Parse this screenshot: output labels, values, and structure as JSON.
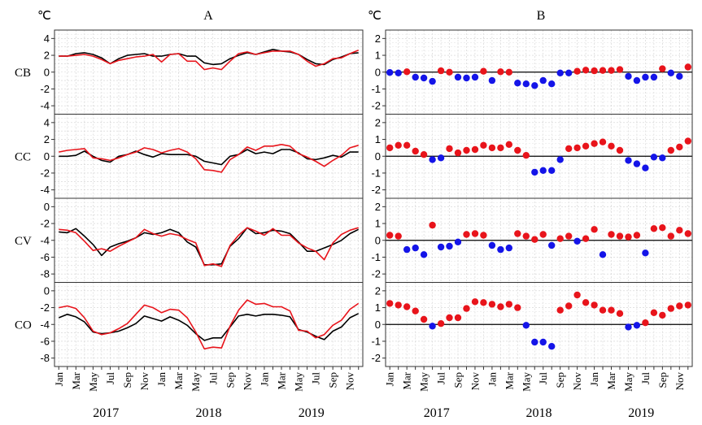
{
  "figure": {
    "panels": [
      {
        "id": "A",
        "title": "A",
        "unit": "℃"
      },
      {
        "id": "B",
        "title": "B",
        "unit": "℃"
      }
    ],
    "years": [
      "2017",
      "2018",
      "2019"
    ]
  },
  "chart_data": [
    {
      "type": "line",
      "panel": "A",
      "title": "A",
      "ylabel": "℃",
      "x": [
        "Jan",
        "Feb",
        "Mar",
        "Apr",
        "May",
        "Jun",
        "Jul",
        "Aug",
        "Sep",
        "Oct",
        "Nov",
        "Dec",
        "Jan",
        "Feb",
        "Mar",
        "Apr",
        "May",
        "Jun",
        "Jul",
        "Aug",
        "Sep",
        "Oct",
        "Nov",
        "Dec",
        "Jan",
        "Feb",
        "Mar",
        "Apr",
        "May",
        "Jun",
        "Jul",
        "Aug",
        "Sep",
        "Oct",
        "Nov",
        "Dec"
      ],
      "x_tick_labels": [
        "Jan",
        "Mar",
        "May",
        "Jul",
        "Sep",
        "Nov",
        "Jan",
        "Mar",
        "May",
        "Jul",
        "Sep",
        "Nov",
        "Jan",
        "Mar",
        "May",
        "Jul",
        "Sep",
        "Nov"
      ],
      "years": [
        "2017",
        "2018",
        "2019"
      ],
      "series_colors": {
        "black": "#000000",
        "red": "#e8141b"
      },
      "facets": [
        {
          "label": "CB",
          "ylim": [
            -5,
            5
          ],
          "yticks": [
            4,
            2,
            0,
            -2,
            -4
          ],
          "series": [
            {
              "color": "black",
              "values": [
                1.9,
                1.9,
                2.2,
                2.3,
                2.1,
                1.7,
                1.0,
                1.6,
                2.0,
                2.1,
                2.2,
                1.9,
                1.9,
                2.1,
                2.2,
                1.9,
                1.9,
                1.1,
                0.9,
                1.0,
                1.6,
                2.0,
                2.3,
                2.1,
                2.4,
                2.7,
                2.5,
                2.4,
                2.1,
                1.5,
                1.0,
                0.9,
                1.5,
                1.8,
                2.2,
                2.3
              ]
            },
            {
              "color": "red",
              "values": [
                1.9,
                1.9,
                2.0,
                2.1,
                1.9,
                1.5,
                1.0,
                1.4,
                1.6,
                1.8,
                1.9,
                2.1,
                1.2,
                2.1,
                2.2,
                1.3,
                1.3,
                0.3,
                0.5,
                0.3,
                1.3,
                2.2,
                2.4,
                2.1,
                2.3,
                2.5,
                2.5,
                2.5,
                2.1,
                1.3,
                0.7,
                1.0,
                1.6,
                1.7,
                2.2,
                2.6
              ]
            }
          ]
        },
        {
          "label": "CC",
          "ylim": [
            -5,
            5
          ],
          "yticks": [
            4,
            2,
            0,
            -2,
            -4
          ],
          "series": [
            {
              "color": "black",
              "values": [
                0.0,
                0.0,
                0.1,
                0.6,
                0.0,
                -0.5,
                -0.7,
                0.0,
                0.2,
                0.6,
                0.2,
                -0.1,
                0.3,
                0.2,
                0.2,
                0.2,
                0.0,
                -0.6,
                -0.8,
                -1.0,
                0.0,
                0.2,
                0.8,
                0.3,
                0.5,
                0.3,
                0.8,
                0.8,
                0.4,
                -0.3,
                -0.4,
                -0.2,
                0.1,
                -0.1,
                0.5,
                0.5
              ]
            },
            {
              "color": "red",
              "values": [
                0.5,
                0.7,
                0.8,
                0.9,
                -0.2,
                -0.3,
                -0.5,
                -0.2,
                0.2,
                0.5,
                1.0,
                0.8,
                0.4,
                0.7,
                0.9,
                0.5,
                -0.3,
                -1.6,
                -1.7,
                -1.9,
                -0.4,
                0.2,
                1.1,
                0.7,
                1.2,
                1.2,
                1.4,
                1.2,
                0.3,
                -0.1,
                -0.6,
                -1.2,
                -0.5,
                0.1,
                1.0,
                1.3
              ]
            }
          ]
        },
        {
          "label": "CV",
          "ylim": [
            -9,
            1
          ],
          "yticks": [
            0,
            -2,
            -4,
            -6,
            -8
          ],
          "series": [
            {
              "color": "black",
              "values": [
                -3.0,
                -3.1,
                -2.6,
                -3.5,
                -4.5,
                -5.8,
                -4.8,
                -4.4,
                -4.1,
                -3.7,
                -3.1,
                -3.3,
                -3.1,
                -2.7,
                -3.1,
                -4.2,
                -4.8,
                -6.9,
                -6.9,
                -6.8,
                -4.7,
                -3.8,
                -2.5,
                -3.2,
                -3.1,
                -2.8,
                -2.9,
                -3.2,
                -4.2,
                -5.3,
                -5.3,
                -4.9,
                -4.5,
                -4.0,
                -3.2,
                -2.7
              ]
            },
            {
              "color": "red",
              "values": [
                -2.7,
                -2.8,
                -3.1,
                -4.1,
                -5.2,
                -5.0,
                -5.3,
                -4.7,
                -4.2,
                -3.7,
                -2.7,
                -3.2,
                -3.5,
                -3.2,
                -3.4,
                -3.9,
                -4.3,
                -7.0,
                -6.8,
                -7.1,
                -4.6,
                -3.4,
                -2.5,
                -2.9,
                -3.4,
                -2.6,
                -3.4,
                -3.4,
                -4.3,
                -4.9,
                -5.3,
                -6.3,
                -4.3,
                -3.3,
                -2.8,
                -2.5
              ]
            }
          ]
        },
        {
          "label": "CO",
          "ylim": [
            -9,
            1
          ],
          "yticks": [
            0,
            -2,
            -4,
            -6,
            -8
          ],
          "series": [
            {
              "color": "black",
              "values": [
                -3.2,
                -2.8,
                -3.1,
                -3.7,
                -4.9,
                -5.1,
                -5.0,
                -4.8,
                -4.4,
                -3.9,
                -3.0,
                -3.3,
                -3.6,
                -3.1,
                -3.5,
                -4.1,
                -5.1,
                -5.9,
                -5.6,
                -5.6,
                -4.3,
                -3.0,
                -2.8,
                -3.0,
                -2.8,
                -2.8,
                -2.9,
                -3.1,
                -4.6,
                -4.9,
                -5.4,
                -5.8,
                -4.8,
                -4.3,
                -3.2,
                -2.7
              ]
            },
            {
              "color": "red",
              "values": [
                -2.0,
                -1.8,
                -2.1,
                -3.2,
                -4.8,
                -5.2,
                -5.0,
                -4.5,
                -3.9,
                -2.8,
                -1.7,
                -2.0,
                -2.6,
                -2.2,
                -2.3,
                -3.2,
                -4.9,
                -6.9,
                -6.7,
                -6.8,
                -4.2,
                -2.3,
                -1.1,
                -1.6,
                -1.5,
                -1.9,
                -1.9,
                -2.4,
                -4.7,
                -4.8,
                -5.6,
                -5.2,
                -4.1,
                -3.5,
                -2.2,
                -1.5
              ]
            }
          ]
        }
      ]
    },
    {
      "type": "scatter",
      "panel": "B",
      "title": "B",
      "ylabel": "℃",
      "x": [
        "Jan",
        "Feb",
        "Mar",
        "Apr",
        "May",
        "Jun",
        "Jul",
        "Aug",
        "Sep",
        "Oct",
        "Nov",
        "Dec",
        "Jan",
        "Feb",
        "Mar",
        "Apr",
        "May",
        "Jun",
        "Jul",
        "Aug",
        "Sep",
        "Oct",
        "Nov",
        "Dec",
        "Jan",
        "Feb",
        "Mar",
        "Apr",
        "May",
        "Jun",
        "Jul",
        "Aug",
        "Sep",
        "Oct",
        "Nov",
        "Dec"
      ],
      "x_tick_labels": [
        "Jan",
        "Mar",
        "May",
        "Jul",
        "Sep",
        "Nov",
        "Jan",
        "Mar",
        "May",
        "Jul",
        "Sep",
        "Nov",
        "Jan",
        "Mar",
        "May",
        "Jul",
        "Sep",
        "Nov"
      ],
      "years": [
        "2017",
        "2018",
        "2019"
      ],
      "point_colors": {
        "positive": "#e8141b",
        "negative": "#1414e8"
      },
      "facets": [
        {
          "label": "CB",
          "ylim": [
            -2.5,
            2.5
          ],
          "yticks": [
            2,
            1,
            0,
            -1,
            -2
          ],
          "values": [
            -0.02,
            -0.05,
            0.02,
            -0.3,
            -0.35,
            -0.55,
            0.08,
            0.0,
            -0.3,
            -0.35,
            -0.3,
            0.05,
            -0.5,
            0.02,
            0.0,
            -0.65,
            -0.7,
            -0.8,
            -0.5,
            -0.7,
            -0.05,
            -0.05,
            0.05,
            0.12,
            0.08,
            0.1,
            0.1,
            0.15,
            -0.25,
            -0.5,
            -0.3,
            -0.3,
            0.2,
            -0.05,
            -0.25,
            0.3
          ]
        },
        {
          "label": "CC",
          "ylim": [
            -2.5,
            2.5
          ],
          "yticks": [
            2,
            1,
            0,
            -1,
            -2
          ],
          "values": [
            0.5,
            0.65,
            0.65,
            0.3,
            0.1,
            -0.2,
            -0.1,
            0.45,
            0.2,
            0.35,
            0.4,
            0.65,
            0.5,
            0.5,
            0.7,
            0.35,
            0.05,
            -0.95,
            -0.85,
            -0.85,
            -0.2,
            0.45,
            0.5,
            0.6,
            0.75,
            0.85,
            0.6,
            0.35,
            -0.25,
            -0.45,
            -0.7,
            -0.05,
            -0.1,
            0.35,
            0.55,
            0.9
          ]
        },
        {
          "label": "CV",
          "ylim": [
            -2.5,
            2.5
          ],
          "yticks": [
            2,
            1,
            0,
            -1,
            -2
          ],
          "values": [
            0.3,
            0.25,
            -0.55,
            -0.45,
            -0.85,
            0.9,
            -0.4,
            -0.35,
            -0.1,
            0.35,
            0.4,
            0.3,
            -0.3,
            -0.55,
            -0.45,
            0.4,
            0.25,
            0.05,
            0.35,
            -0.3,
            0.1,
            0.25,
            -0.05,
            0.1,
            0.65,
            -0.85,
            0.35,
            0.25,
            0.2,
            0.3,
            -0.75,
            0.7,
            0.75,
            0.25,
            0.6,
            0.4
          ]
        },
        {
          "label": "CO",
          "ylim": [
            -2.5,
            2.5
          ],
          "yticks": [
            2,
            1,
            0,
            -1,
            -2
          ],
          "values": [
            1.25,
            1.15,
            1.05,
            0.8,
            0.3,
            -0.1,
            0.05,
            0.4,
            0.4,
            0.95,
            1.35,
            1.3,
            1.2,
            1.05,
            1.2,
            1.0,
            -0.05,
            -1.05,
            -1.05,
            -1.3,
            0.85,
            1.1,
            1.75,
            1.3,
            1.15,
            0.85,
            0.85,
            0.65,
            -0.15,
            -0.05,
            0.1,
            0.7,
            0.55,
            0.95,
            1.1,
            1.15
          ]
        }
      ]
    }
  ]
}
